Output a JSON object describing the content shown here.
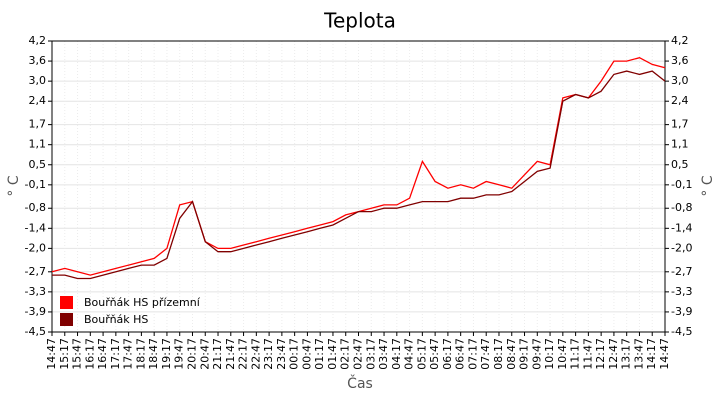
{
  "chart_data": {
    "type": "line",
    "title": "Teplota",
    "x_label": "Čas",
    "y_label": "° C",
    "y2_label": "° C",
    "categories": [
      "14:47",
      "15:17",
      "15:47",
      "16:17",
      "16:47",
      "17:17",
      "17:47",
      "18:17",
      "18:47",
      "19:17",
      "19:47",
      "20:17",
      "20:47",
      "21:17",
      "21:47",
      "22:17",
      "22:47",
      "23:17",
      "23:47",
      "00:17",
      "00:47",
      "01:17",
      "01:47",
      "02:17",
      "02:47",
      "03:17",
      "03:47",
      "04:17",
      "04:47",
      "05:17",
      "05:47",
      "06:17",
      "06:47",
      "07:17",
      "07:47",
      "08:17",
      "08:47",
      "09:17",
      "09:47",
      "10:17",
      "10:47",
      "11:17",
      "11:47",
      "12:17",
      "12:47",
      "13:17",
      "13:47",
      "14:17",
      "14:47"
    ],
    "series": [
      {
        "name": "Bouřňák HS přízemní",
        "color": "#ff0000",
        "values": [
          -2.7,
          -2.6,
          -2.7,
          -2.8,
          -2.7,
          -2.6,
          -2.5,
          -2.4,
          -2.3,
          -2.0,
          -0.7,
          -0.6,
          -1.8,
          -2.0,
          -2.0,
          -1.9,
          -1.8,
          -1.7,
          -1.6,
          -1.5,
          -1.4,
          -1.3,
          -1.2,
          -1.0,
          -0.9,
          -0.8,
          -0.7,
          -0.7,
          -0.5,
          0.6,
          0.0,
          -0.2,
          -0.1,
          -0.2,
          0.0,
          -0.1,
          -0.2,
          0.2,
          0.6,
          0.5,
          2.5,
          2.6,
          2.5,
          3.0,
          3.6,
          3.6,
          3.7,
          3.5,
          3.4
        ]
      },
      {
        "name": "Bouřňák HS",
        "color": "#800000",
        "values": [
          -2.8,
          -2.8,
          -2.9,
          -2.9,
          -2.8,
          -2.7,
          -2.6,
          -2.5,
          -2.5,
          -2.3,
          -1.1,
          -0.6,
          -1.8,
          -2.1,
          -2.1,
          -2.0,
          -1.9,
          -1.8,
          -1.7,
          -1.6,
          -1.5,
          -1.4,
          -1.3,
          -1.1,
          -0.9,
          -0.9,
          -0.8,
          -0.8,
          -0.7,
          -0.6,
          -0.6,
          -0.6,
          -0.5,
          -0.5,
          -0.4,
          -0.4,
          -0.3,
          0.0,
          0.3,
          0.4,
          2.4,
          2.6,
          2.5,
          2.7,
          3.2,
          3.3,
          3.2,
          3.3,
          3.0
        ]
      }
    ],
    "ylim": [
      -4.5,
      4.2
    ],
    "yticks": [
      {
        "value": 4.2,
        "label": "4,2"
      },
      {
        "value": 3.6,
        "label": "3,6"
      },
      {
        "value": 3.0,
        "label": "3,0"
      },
      {
        "value": 2.4,
        "label": "2,4"
      },
      {
        "value": 1.7,
        "label": "1,7"
      },
      {
        "value": 1.1,
        "label": "1,1"
      },
      {
        "value": 0.5,
        "label": "0,5"
      },
      {
        "value": -0.1,
        "label": "-0,1"
      },
      {
        "value": -0.8,
        "label": "-0,8"
      },
      {
        "value": -1.4,
        "label": "-1,4"
      },
      {
        "value": -2.0,
        "label": "-2,0"
      },
      {
        "value": -2.7,
        "label": "-2,7"
      },
      {
        "value": -3.3,
        "label": "-3,3"
      },
      {
        "value": -3.9,
        "label": "-3,9"
      },
      {
        "value": -4.5,
        "label": "-4,5"
      }
    ],
    "grid": true,
    "legend": "bottom-left"
  }
}
